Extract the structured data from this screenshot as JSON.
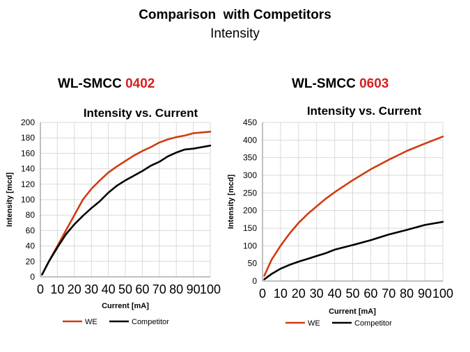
{
  "header": {
    "title": "Comparison  with Competitors",
    "subtitle": "Intensity"
  },
  "colors": {
    "we": "#d13b10",
    "competitor": "#000000",
    "accent_code": "#d42020",
    "grid": "#d9d9d9"
  },
  "charts": [
    {
      "product_prefix": "WL-SMCC ",
      "product_code": "0402"
    },
    {
      "product_prefix": "WL-SMCC ",
      "product_code": "0603"
    }
  ],
  "chart_data": [
    {
      "type": "line",
      "title": "Intensity vs. Current",
      "xlabel": "Current [mA]",
      "ylabel": "Intensity [mcd]",
      "xlim": [
        0,
        100
      ],
      "ylim": [
        0,
        200
      ],
      "xticks": [
        0,
        10,
        20,
        30,
        40,
        50,
        60,
        70,
        80,
        90,
        100
      ],
      "yticks": [
        0,
        20,
        40,
        60,
        80,
        100,
        120,
        140,
        160,
        180,
        200
      ],
      "grid": true,
      "legend": "bottom",
      "series": [
        {
          "name": "WE",
          "x": [
            1,
            5,
            10,
            15,
            20,
            25,
            30,
            35,
            40,
            45,
            50,
            55,
            60,
            65,
            70,
            75,
            80,
            85,
            90,
            95,
            100
          ],
          "y": [
            3,
            20,
            40,
            60,
            80,
            100,
            114,
            125,
            135,
            143,
            150,
            157,
            163,
            168,
            174,
            178,
            181,
            183,
            186,
            187,
            188
          ]
        },
        {
          "name": "Competitor",
          "x": [
            1,
            5,
            10,
            15,
            20,
            25,
            30,
            35,
            40,
            45,
            50,
            55,
            60,
            65,
            70,
            75,
            80,
            85,
            90,
            95,
            100
          ],
          "y": [
            3,
            20,
            38,
            55,
            68,
            79,
            89,
            98,
            109,
            118,
            125,
            131,
            137,
            144,
            149,
            156,
            161,
            165,
            166,
            168,
            170
          ]
        }
      ]
    },
    {
      "type": "line",
      "title": "Intensity vs. Current",
      "xlabel": "Current [mA]",
      "ylabel": "Intensity [mcd]",
      "xlim": [
        0,
        100
      ],
      "ylim": [
        0,
        450
      ],
      "xticks": [
        0,
        10,
        20,
        30,
        40,
        50,
        60,
        70,
        80,
        90,
        100
      ],
      "yticks": [
        0,
        50,
        100,
        150,
        200,
        250,
        300,
        350,
        400,
        450
      ],
      "grid": true,
      "legend": "bottom",
      "series": [
        {
          "name": "WE",
          "x": [
            1,
            5,
            10,
            15,
            20,
            25,
            30,
            35,
            40,
            50,
            60,
            70,
            80,
            90,
            100
          ],
          "y": [
            15,
            60,
            100,
            135,
            165,
            190,
            212,
            233,
            252,
            286,
            317,
            344,
            369,
            390,
            410
          ]
        },
        {
          "name": "Competitor",
          "x": [
            1,
            5,
            10,
            15,
            20,
            25,
            30,
            35,
            40,
            50,
            60,
            70,
            80,
            90,
            100
          ],
          "y": [
            5,
            20,
            35,
            46,
            55,
            63,
            71,
            79,
            89,
            102,
            116,
            132,
            145,
            159,
            168
          ]
        }
      ]
    }
  ]
}
